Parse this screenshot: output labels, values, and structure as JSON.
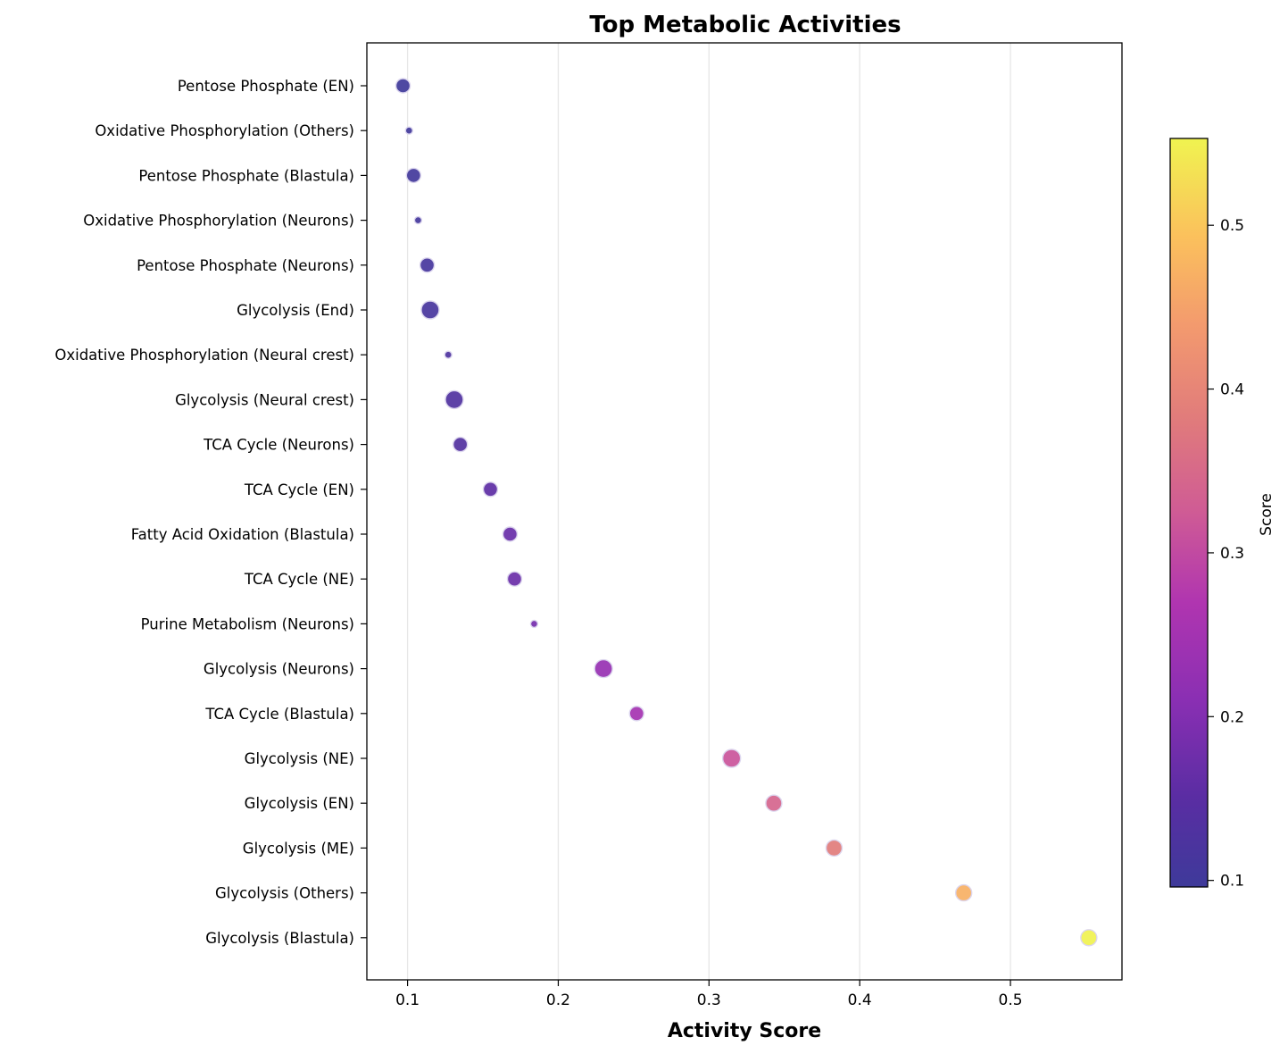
{
  "chart_data": {
    "type": "scatter",
    "title": "Top Metabolic Activities",
    "xlabel": "Activity Score",
    "ylabel": "",
    "xlim": [
      0.073,
      0.574
    ],
    "xticks": [
      0.1,
      0.2,
      0.3,
      0.4,
      0.5
    ],
    "xtick_labels": [
      "0.1",
      "0.2",
      "0.3",
      "0.4",
      "0.5"
    ],
    "grid": "vertical",
    "colormap": "plasma",
    "colorbar": {
      "label": "Score",
      "range": [
        0.096,
        0.553
      ],
      "ticks": [
        0.1,
        0.2,
        0.3,
        0.4,
        0.5
      ],
      "tick_labels": [
        "0.1",
        "0.2",
        "0.3",
        "0.4",
        "0.5"
      ]
    },
    "categories": [
      "Pentose Phosphate (EN)",
      "Oxidative Phosphorylation (Others)",
      "Pentose Phosphate (Blastula)",
      "Oxidative Phosphorylation (Neurons)",
      "Pentose Phosphate (Neurons)",
      "Glycolysis (End)",
      "Oxidative Phosphorylation (Neural crest)",
      "Glycolysis (Neural crest)",
      "TCA Cycle (Neurons)",
      "TCA Cycle (EN)",
      "Fatty Acid Oxidation (Blastula)",
      "TCA Cycle (NE)",
      "Purine Metabolism (Neurons)",
      "Glycolysis (Neurons)",
      "TCA Cycle (Blastula)",
      "Glycolysis (NE)",
      "Glycolysis (EN)",
      "Glycolysis (ME)",
      "Glycolysis (Others)",
      "Glycolysis (Blastula)"
    ],
    "values": [
      0.097,
      0.101,
      0.104,
      0.107,
      0.113,
      0.115,
      0.127,
      0.131,
      0.135,
      0.155,
      0.168,
      0.171,
      0.184,
      0.23,
      0.252,
      0.315,
      0.343,
      0.383,
      0.469,
      0.552
    ],
    "marker_size": [
      8,
      4,
      8,
      4,
      8,
      10,
      4,
      10,
      8,
      8,
      8,
      8,
      4,
      10,
      8,
      10,
      9,
      9,
      9,
      9
    ]
  }
}
